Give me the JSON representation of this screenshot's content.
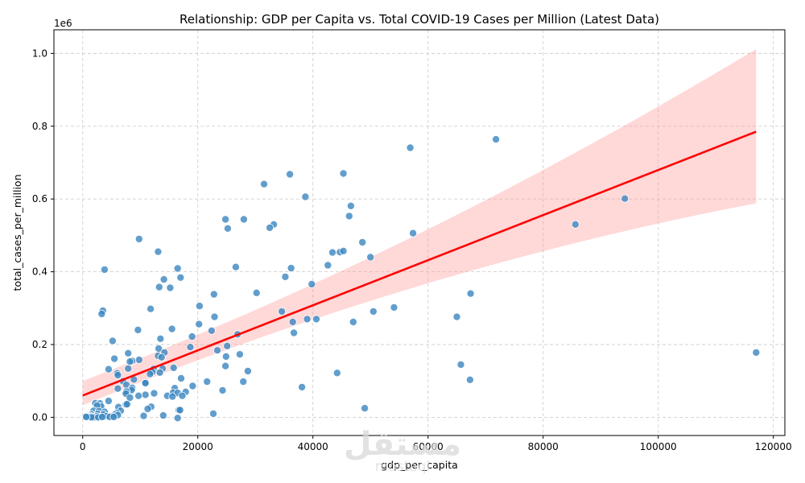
{
  "chart_data": {
    "type": "scatter",
    "title": "Relationship: GDP per Capita vs. Total COVID-19 Cases per Million (Latest Data)",
    "xlabel": "gdp_per_capita",
    "ylabel": "total_cases_per_million",
    "y_offset_label": "1e6",
    "xlim": [
      -5000,
      122000
    ],
    "ylim": [
      -0.05,
      1.065
    ],
    "y_scale": 1000000,
    "xticks": [
      0,
      20000,
      40000,
      60000,
      80000,
      100000,
      120000
    ],
    "xtick_labels": [
      "0",
      "20000",
      "40000",
      "60000",
      "80000",
      "100000",
      "120000"
    ],
    "yticks": [
      0.0,
      0.2,
      0.4,
      0.6,
      0.8,
      1.0
    ],
    "ytick_labels": [
      "0.0",
      "0.2",
      "0.4",
      "0.6",
      "0.8",
      "1.0"
    ],
    "grid": true,
    "point_color": "#1f77b4",
    "regression": {
      "color": "#ff0000",
      "ci_color": "#ff9999",
      "x_range": [
        0,
        117000
      ],
      "y_at_start": 0.06,
      "y_at_end": 0.785,
      "ci_upper_start": 0.1,
      "ci_lower_start": 0.033,
      "ci_upper_end": 1.012,
      "ci_lower_end": 0.588,
      "ci_upper_mid": 0.44,
      "ci_lower_mid": 0.32,
      "x_mid": 50000
    },
    "points": [
      [
        71800,
        0.764
      ],
      [
        56900,
        0.741
      ],
      [
        36000,
        0.668
      ],
      [
        45300,
        0.67
      ],
      [
        31500,
        0.641
      ],
      [
        38700,
        0.606
      ],
      [
        46600,
        0.581
      ],
      [
        94200,
        0.601
      ],
      [
        46300,
        0.553
      ],
      [
        24800,
        0.544
      ],
      [
        28000,
        0.544
      ],
      [
        33200,
        0.53
      ],
      [
        32500,
        0.521
      ],
      [
        25200,
        0.519
      ],
      [
        85600,
        0.53
      ],
      [
        57400,
        0.506
      ],
      [
        9800,
        0.49
      ],
      [
        48600,
        0.481
      ],
      [
        13100,
        0.455
      ],
      [
        43400,
        0.453
      ],
      [
        44700,
        0.454
      ],
      [
        45300,
        0.457
      ],
      [
        50000,
        0.44
      ],
      [
        42600,
        0.418
      ],
      [
        36200,
        0.41
      ],
      [
        26600,
        0.413
      ],
      [
        16500,
        0.409
      ],
      [
        3800,
        0.406
      ],
      [
        35200,
        0.386
      ],
      [
        17000,
        0.384
      ],
      [
        14100,
        0.379
      ],
      [
        39800,
        0.366
      ],
      [
        13300,
        0.358
      ],
      [
        15200,
        0.356
      ],
      [
        30200,
        0.342
      ],
      [
        67400,
        0.34
      ],
      [
        22800,
        0.338
      ],
      [
        20300,
        0.306
      ],
      [
        54100,
        0.302
      ],
      [
        11800,
        0.298
      ],
      [
        3500,
        0.293
      ],
      [
        34600,
        0.291
      ],
      [
        50500,
        0.291
      ],
      [
        3300,
        0.284
      ],
      [
        65000,
        0.276
      ],
      [
        22900,
        0.276
      ],
      [
        39000,
        0.27
      ],
      [
        40600,
        0.27
      ],
      [
        36500,
        0.262
      ],
      [
        47000,
        0.262
      ],
      [
        20200,
        0.256
      ],
      [
        15500,
        0.243
      ],
      [
        9600,
        0.24
      ],
      [
        22400,
        0.238
      ],
      [
        36700,
        0.232
      ],
      [
        26900,
        0.228
      ],
      [
        19000,
        0.222
      ],
      [
        13500,
        0.216
      ],
      [
        5200,
        0.21
      ],
      [
        18700,
        0.193
      ],
      [
        25100,
        0.196
      ],
      [
        13200,
        0.189
      ],
      [
        23400,
        0.184
      ],
      [
        7900,
        0.176
      ],
      [
        14200,
        0.178
      ],
      [
        27300,
        0.173
      ],
      [
        117000,
        0.178
      ],
      [
        13100,
        0.169
      ],
      [
        24900,
        0.167
      ],
      [
        13700,
        0.165
      ],
      [
        5500,
        0.161
      ],
      [
        9800,
        0.158
      ],
      [
        8600,
        0.155
      ],
      [
        8200,
        0.153
      ],
      [
        65700,
        0.145
      ],
      [
        24800,
        0.141
      ],
      [
        15800,
        0.136
      ],
      [
        13900,
        0.134
      ],
      [
        4500,
        0.132
      ],
      [
        7900,
        0.134
      ],
      [
        12300,
        0.133
      ],
      [
        28700,
        0.127
      ],
      [
        12100,
        0.124
      ],
      [
        13400,
        0.123
      ],
      [
        44200,
        0.122
      ],
      [
        11700,
        0.119
      ],
      [
        6000,
        0.121
      ],
      [
        6100,
        0.116
      ],
      [
        17100,
        0.107
      ],
      [
        67300,
        0.103
      ],
      [
        8900,
        0.104
      ],
      [
        7000,
        0.099
      ],
      [
        21600,
        0.098
      ],
      [
        27900,
        0.098
      ],
      [
        10800,
        0.095
      ],
      [
        10900,
        0.094
      ],
      [
        7600,
        0.089
      ],
      [
        19100,
        0.086
      ],
      [
        38100,
        0.083
      ],
      [
        16000,
        0.08
      ],
      [
        8600,
        0.081
      ],
      [
        6100,
        0.079
      ],
      [
        24300,
        0.074
      ],
      [
        8500,
        0.075
      ],
      [
        17900,
        0.07
      ],
      [
        7600,
        0.071
      ],
      [
        12400,
        0.066
      ],
      [
        15700,
        0.068
      ],
      [
        7500,
        0.065
      ],
      [
        16500,
        0.067
      ],
      [
        10900,
        0.062
      ],
      [
        9700,
        0.059
      ],
      [
        14700,
        0.059
      ],
      [
        17300,
        0.059
      ],
      [
        15600,
        0.057
      ],
      [
        8200,
        0.054
      ],
      [
        4500,
        0.045
      ],
      [
        2200,
        0.039
      ],
      [
        3000,
        0.038
      ],
      [
        7500,
        0.035
      ],
      [
        7700,
        0.036
      ],
      [
        3200,
        0.03
      ],
      [
        6200,
        0.028
      ],
      [
        11900,
        0.029
      ],
      [
        2500,
        0.032
      ],
      [
        49000,
        0.025
      ],
      [
        11300,
        0.023
      ],
      [
        16700,
        0.02
      ],
      [
        16900,
        0.02
      ],
      [
        6600,
        0.018
      ],
      [
        1900,
        0.018
      ],
      [
        2800,
        0.017
      ],
      [
        3800,
        0.015
      ],
      [
        5900,
        0.012
      ],
      [
        22700,
        0.01
      ],
      [
        2600,
        0.009
      ],
      [
        3600,
        0.008
      ],
      [
        1500,
        0.008
      ],
      [
        5600,
        0.008
      ],
      [
        6100,
        0.006
      ],
      [
        14000,
        0.005
      ],
      [
        10600,
        0.004
      ],
      [
        1300,
        0.004
      ],
      [
        900,
        0.003
      ],
      [
        2400,
        0.003
      ],
      [
        4100,
        0.003
      ],
      [
        5200,
        0.003
      ],
      [
        700,
        0.002
      ],
      [
        1700,
        0.002
      ],
      [
        3100,
        0.001
      ],
      [
        4700,
        0.001
      ],
      [
        1100,
        0.001
      ],
      [
        5400,
        0.001
      ],
      [
        2000,
        0.0
      ],
      [
        16500,
        -0.002
      ],
      [
        1500,
        0.0
      ],
      [
        2700,
        0.0
      ],
      [
        3400,
        0.001
      ],
      [
        600,
        0.001
      ]
    ]
  },
  "watermark": {
    "arabic": "مستقل",
    "latin": "mostaql"
  }
}
